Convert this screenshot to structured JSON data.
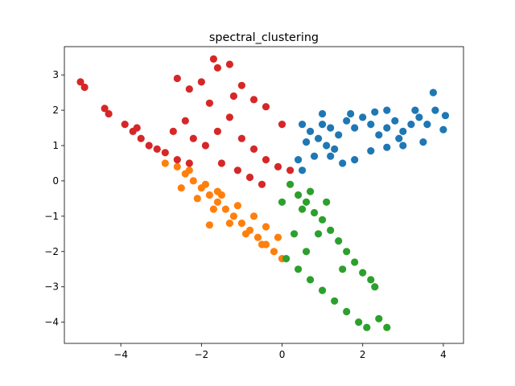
{
  "chart_data": {
    "type": "scatter",
    "title": "spectral_clustering",
    "xlabel": "",
    "ylabel": "",
    "xlim": [
      -5.4,
      4.5
    ],
    "ylim": [
      -4.6,
      3.8
    ],
    "xticks": [
      -4,
      -2,
      0,
      2,
      4
    ],
    "yticks": [
      -4,
      -3,
      -2,
      -1,
      0,
      1,
      2,
      3
    ],
    "xtick_labels": [
      "−4",
      "−2",
      "0",
      "2",
      "4"
    ],
    "ytick_labels": [
      "−4",
      "−3",
      "−2",
      "−1",
      "0",
      "1",
      "2",
      "3"
    ],
    "grid": false,
    "legend": "none",
    "series": [
      {
        "color": "#1f77b4",
        "points": [
          [
            0.5,
            1.6
          ],
          [
            0.7,
            1.4
          ],
          [
            0.9,
            1.2
          ],
          [
            1.0,
            1.6
          ],
          [
            1.2,
            1.5
          ],
          [
            1.1,
            1.0
          ],
          [
            0.8,
            0.7
          ],
          [
            1.4,
            1.3
          ],
          [
            1.6,
            1.7
          ],
          [
            1.8,
            1.5
          ],
          [
            2.0,
            1.8
          ],
          [
            2.2,
            1.6
          ],
          [
            2.4,
            1.3
          ],
          [
            2.6,
            1.5
          ],
          [
            2.8,
            1.7
          ],
          [
            3.0,
            1.4
          ],
          [
            3.2,
            1.6
          ],
          [
            3.4,
            1.8
          ],
          [
            3.6,
            1.6
          ],
          [
            3.8,
            2.0
          ],
          [
            4.05,
            1.85
          ],
          [
            4.0,
            1.45
          ],
          [
            3.75,
            2.5
          ],
          [
            3.5,
            1.1
          ],
          [
            3.0,
            1.0
          ],
          [
            2.6,
            0.95
          ],
          [
            2.2,
            0.85
          ],
          [
            1.8,
            0.6
          ],
          [
            1.5,
            0.5
          ],
          [
            1.2,
            0.7
          ],
          [
            0.6,
            1.1
          ],
          [
            0.4,
            0.6
          ],
          [
            0.5,
            0.3
          ],
          [
            1.0,
            1.9
          ],
          [
            1.7,
            1.9
          ],
          [
            2.3,
            1.95
          ],
          [
            2.6,
            2.0
          ],
          [
            3.3,
            2.0
          ],
          [
            2.9,
            1.2
          ],
          [
            1.3,
            0.9
          ]
        ]
      },
      {
        "color": "#ff7f0e",
        "points": [
          [
            -2.9,
            0.5
          ],
          [
            -2.6,
            0.4
          ],
          [
            -2.4,
            0.2
          ],
          [
            -2.2,
            0.0
          ],
          [
            -2.0,
            -0.2
          ],
          [
            -1.8,
            -0.4
          ],
          [
            -1.6,
            -0.6
          ],
          [
            -1.4,
            -0.8
          ],
          [
            -1.2,
            -1.0
          ],
          [
            -1.0,
            -1.2
          ],
          [
            -0.8,
            -1.4
          ],
          [
            -0.6,
            -1.6
          ],
          [
            -0.4,
            -1.8
          ],
          [
            -0.2,
            -2.0
          ],
          [
            0.0,
            -2.2
          ],
          [
            -2.3,
            0.3
          ],
          [
            -1.9,
            -0.1
          ],
          [
            -1.5,
            -0.4
          ],
          [
            -1.1,
            -0.7
          ],
          [
            -0.7,
            -1.0
          ],
          [
            -0.4,
            -1.3
          ],
          [
            -0.1,
            -1.6
          ],
          [
            -1.8,
            -1.25
          ],
          [
            -1.7,
            -0.8
          ],
          [
            -1.3,
            -1.2
          ],
          [
            -0.9,
            -1.5
          ],
          [
            -0.5,
            -1.8
          ],
          [
            -2.5,
            -0.2
          ],
          [
            -2.1,
            -0.5
          ],
          [
            -1.6,
            -0.3
          ]
        ]
      },
      {
        "color": "#2ca02c",
        "points": [
          [
            0.2,
            -0.1
          ],
          [
            0.4,
            -0.4
          ],
          [
            0.6,
            -0.6
          ],
          [
            0.8,
            -0.9
          ],
          [
            1.0,
            -1.1
          ],
          [
            1.2,
            -1.4
          ],
          [
            1.4,
            -1.7
          ],
          [
            1.6,
            -2.0
          ],
          [
            1.8,
            -2.3
          ],
          [
            2.0,
            -2.6
          ],
          [
            2.3,
            -3.0
          ],
          [
            0.1,
            -2.2
          ],
          [
            0.4,
            -2.5
          ],
          [
            0.7,
            -2.8
          ],
          [
            1.0,
            -3.1
          ],
          [
            1.3,
            -3.4
          ],
          [
            1.6,
            -3.7
          ],
          [
            1.9,
            -4.0
          ],
          [
            2.1,
            -4.15
          ],
          [
            2.4,
            -3.9
          ],
          [
            2.6,
            -4.15
          ],
          [
            0.5,
            -0.8
          ],
          [
            0.3,
            -1.5
          ],
          [
            0.9,
            -1.5
          ],
          [
            1.5,
            -2.5
          ],
          [
            2.2,
            -2.8
          ],
          [
            0.7,
            -0.3
          ],
          [
            1.1,
            -0.6
          ],
          [
            0.0,
            -0.6
          ],
          [
            0.6,
            -2.0
          ]
        ]
      },
      {
        "color": "#d62728",
        "points": [
          [
            -5.0,
            2.8
          ],
          [
            -4.9,
            2.65
          ],
          [
            -4.4,
            2.05
          ],
          [
            -4.3,
            1.9
          ],
          [
            -3.9,
            1.6
          ],
          [
            -3.7,
            1.4
          ],
          [
            -3.5,
            1.2
          ],
          [
            -3.3,
            1.0
          ],
          [
            -3.1,
            0.9
          ],
          [
            -2.9,
            0.8
          ],
          [
            -2.6,
            0.6
          ],
          [
            -2.3,
            0.5
          ],
          [
            -2.0,
            2.8
          ],
          [
            -1.7,
            3.45
          ],
          [
            -1.6,
            3.2
          ],
          [
            -1.3,
            3.3
          ],
          [
            -1.0,
            2.7
          ],
          [
            -0.7,
            2.3
          ],
          [
            -0.4,
            2.1
          ],
          [
            -2.4,
            1.7
          ],
          [
            -2.2,
            1.2
          ],
          [
            -1.9,
            1.0
          ],
          [
            -1.6,
            1.4
          ],
          [
            -1.3,
            1.8
          ],
          [
            -1.0,
            1.2
          ],
          [
            -0.7,
            0.9
          ],
          [
            -0.4,
            0.6
          ],
          [
            -0.1,
            0.4
          ],
          [
            0.2,
            0.3
          ],
          [
            -1.5,
            0.5
          ],
          [
            -1.1,
            0.3
          ],
          [
            -0.8,
            0.1
          ],
          [
            -0.5,
            -0.1
          ],
          [
            -2.6,
            2.9
          ],
          [
            -2.3,
            2.6
          ],
          [
            -2.7,
            1.4
          ],
          [
            -1.8,
            2.2
          ],
          [
            -1.2,
            2.4
          ],
          [
            0.0,
            1.6
          ],
          [
            -3.6,
            1.5
          ]
        ]
      }
    ]
  }
}
